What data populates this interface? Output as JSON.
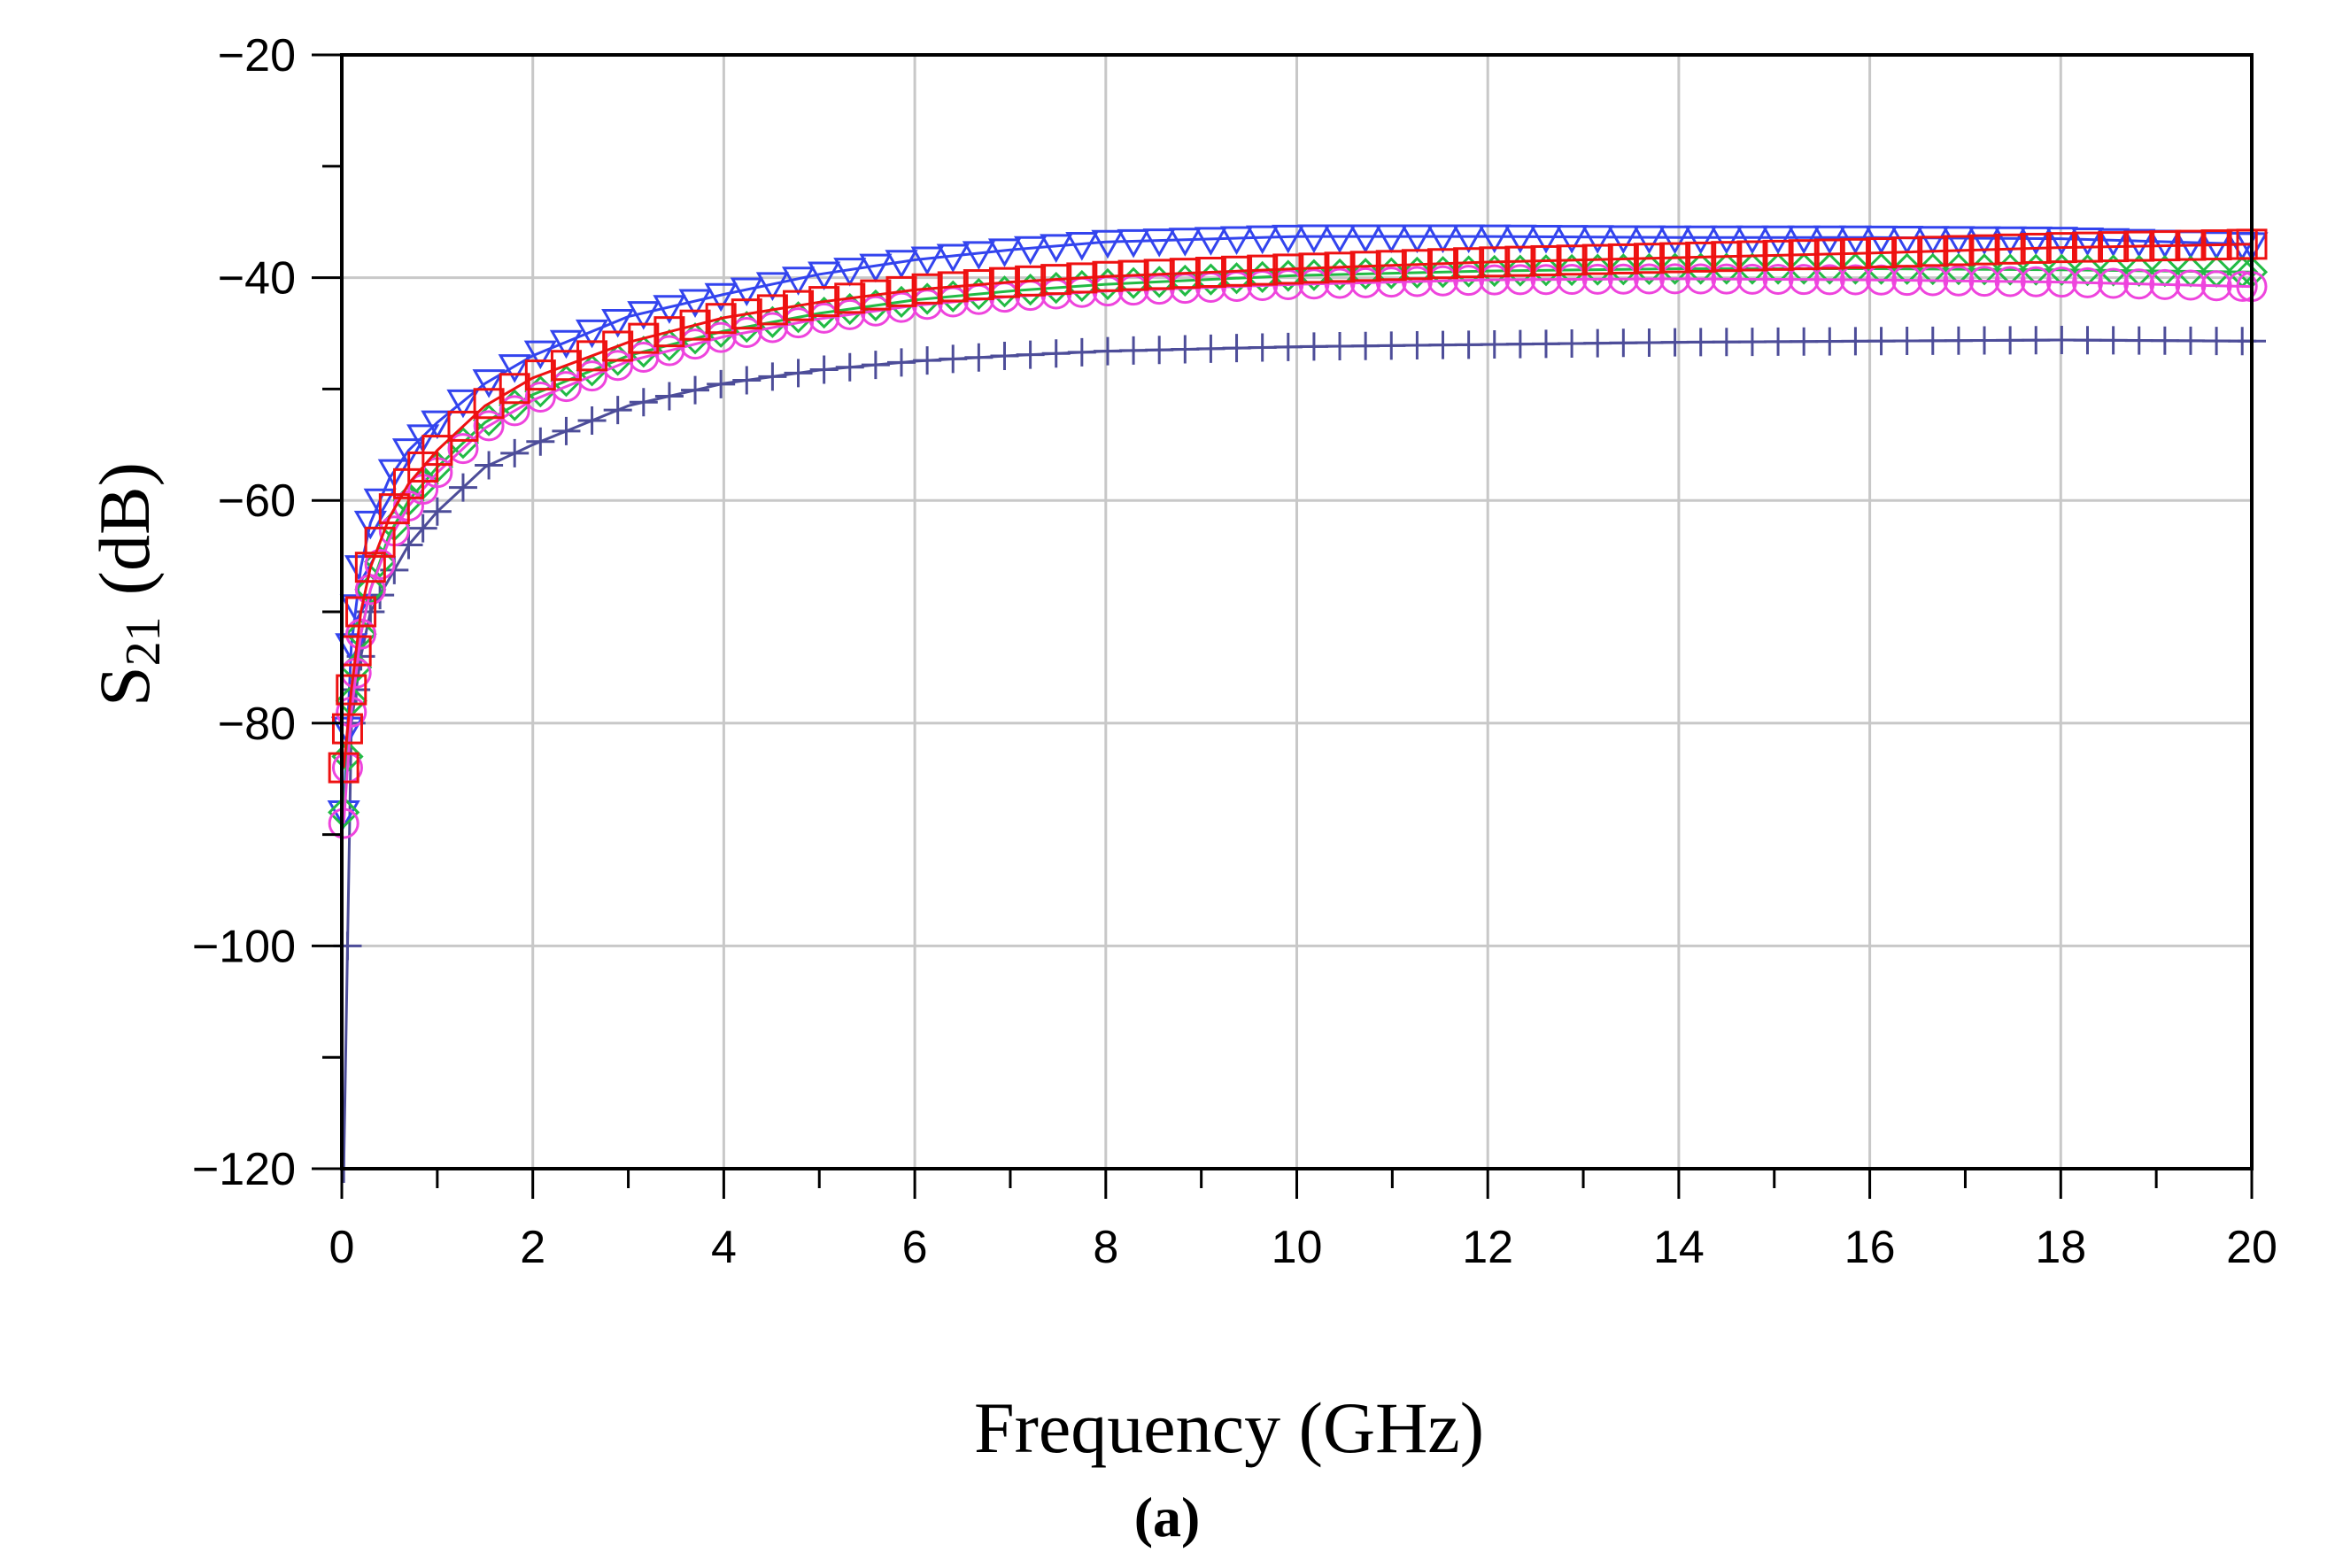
{
  "chart_data": {
    "type": "line",
    "title": "",
    "xlabel": "Frequency  (GHz)",
    "ylabel_main": "S",
    "ylabel_sub": "21",
    "ylabel_unit": "(dB)",
    "caption": "(a)",
    "xlim": [
      0,
      20
    ],
    "ylim": [
      -120,
      -20
    ],
    "xticks": [
      0,
      2,
      4,
      6,
      8,
      10,
      12,
      14,
      16,
      18,
      20
    ],
    "xtick_labels": [
      "0",
      "2",
      "4",
      "6",
      "8",
      "10",
      "12",
      "14",
      "16",
      "18",
      "20"
    ],
    "yticks": [
      -20,
      -40,
      -60,
      -80,
      -100,
      -120
    ],
    "ytick_labels": [
      "−20",
      "−40",
      "−60",
      "−80",
      "−100",
      "−120"
    ],
    "grid": true,
    "legend": "none",
    "series": [
      {
        "name": "trace-purple-plus",
        "color": "#4d4d99",
        "marker": "plus",
        "x": [
          0.02,
          0.1,
          0.2,
          0.3,
          0.5,
          0.7,
          1,
          1.5,
          2,
          3,
          4,
          5,
          6,
          7,
          8,
          10,
          12,
          14,
          16,
          18,
          20
        ],
        "y": [
          -120,
          -80,
          -74,
          -70,
          -67,
          -64,
          -61,
          -57,
          -55,
          -51.5,
          -49.5,
          -48.3,
          -47.5,
          -47,
          -46.6,
          -46.2,
          -46,
          -45.8,
          -45.7,
          -45.6,
          -45.7
        ]
      },
      {
        "name": "trace-blue-triangle",
        "color": "#3344ee",
        "marker": "triangle-down",
        "x": [
          0.02,
          0.1,
          0.2,
          0.3,
          0.5,
          0.7,
          1,
          1.5,
          2,
          3,
          4,
          5,
          6,
          7,
          8,
          10,
          12,
          14,
          16,
          18,
          20
        ],
        "y": [
          -88,
          -73,
          -66,
          -62,
          -58,
          -55.5,
          -53,
          -49.5,
          -47,
          -43.5,
          -41.5,
          -39.7,
          -38.4,
          -37.5,
          -36.8,
          -36.3,
          -36.3,
          -36.4,
          -36.4,
          -36.5,
          -37
        ]
      },
      {
        "name": "trace-green-diamond",
        "color": "#22bb44",
        "marker": "diamond",
        "x": [
          0.02,
          0.1,
          0.2,
          0.3,
          0.5,
          0.7,
          1,
          1.5,
          2,
          3,
          4,
          5,
          6,
          7,
          8,
          10,
          12,
          14,
          16,
          18,
          20
        ],
        "y": [
          -88,
          -78,
          -72,
          -68,
          -63,
          -60,
          -57,
          -53,
          -50.5,
          -47,
          -44.8,
          -43.2,
          -42,
          -41.2,
          -40.6,
          -39.8,
          -39.4,
          -39.2,
          -39.2,
          -39.3,
          -39.5
        ]
      },
      {
        "name": "trace-magenta-circle",
        "color": "#ee44dd",
        "marker": "circle",
        "x": [
          0.02,
          0.1,
          0.2,
          0.3,
          0.5,
          0.7,
          1,
          1.5,
          2,
          3,
          4,
          5,
          6,
          7,
          8,
          10,
          12,
          14,
          16,
          18,
          20
        ],
        "y": [
          -89,
          -79,
          -72,
          -68,
          -63.5,
          -60.5,
          -57.5,
          -53.5,
          -51,
          -47.5,
          -45.3,
          -43.7,
          -42.5,
          -41.7,
          -41.2,
          -40.6,
          -40.2,
          -40.1,
          -40.2,
          -40.4,
          -40.8
        ]
      },
      {
        "name": "trace-red-square",
        "color": "#ee1111",
        "marker": "square",
        "x": [
          0.02,
          0.1,
          0.2,
          0.3,
          0.5,
          0.7,
          1,
          1.5,
          2,
          3,
          4,
          5,
          6,
          7,
          8,
          10,
          12,
          14,
          16,
          18,
          20
        ],
        "y": [
          -84,
          -77,
          -70,
          -66,
          -61.5,
          -58.5,
          -55.5,
          -51.5,
          -49,
          -45.8,
          -43.6,
          -42.2,
          -41.1,
          -40.4,
          -39.9,
          -39.2,
          -38.6,
          -38.2,
          -37.8,
          -37.3,
          -37
        ]
      }
    ]
  }
}
